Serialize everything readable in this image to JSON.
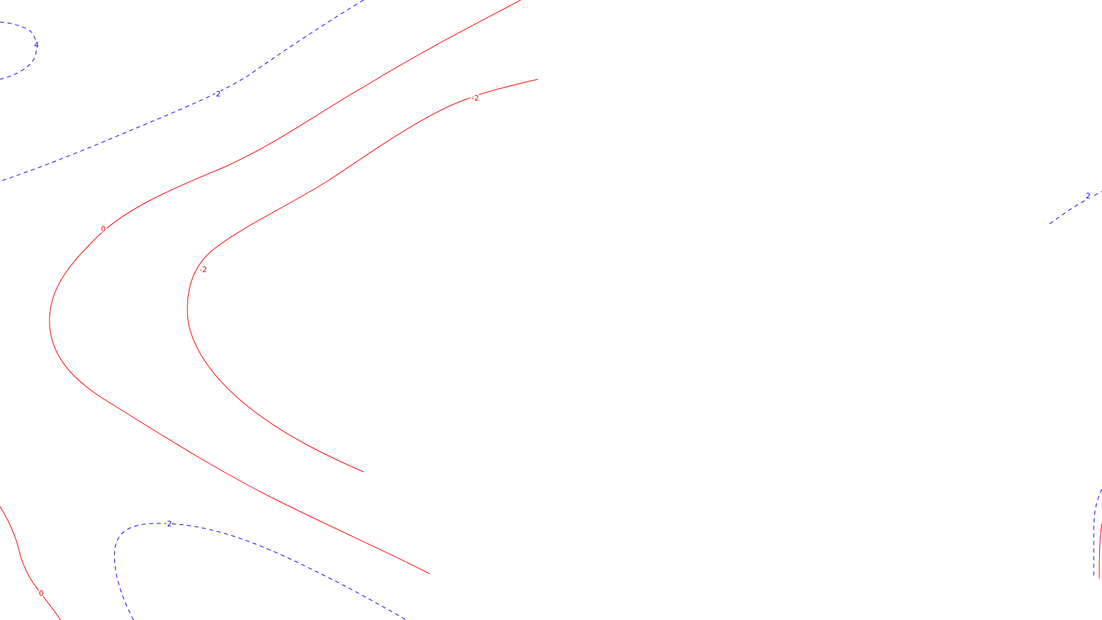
{
  "chart_data": {
    "type": "contour",
    "title": "",
    "xlabel": "",
    "ylabel": "",
    "grid": false,
    "legend": "none",
    "colors": {
      "positive": "#0000ff",
      "nonpositive": "#ff0000",
      "background": "#ffffff"
    },
    "levels": [
      {
        "value": 4,
        "label": "4",
        "style": "dashed",
        "color": "#0000ff"
      },
      {
        "value": 2,
        "label": "2",
        "style": "dashed",
        "color": "#0000ff"
      },
      {
        "value": 0,
        "label": "0",
        "style": "solid",
        "color": "#ff0000"
      },
      {
        "value": -2,
        "label": "-2",
        "style": "solid",
        "color": "#ff0000"
      }
    ]
  }
}
